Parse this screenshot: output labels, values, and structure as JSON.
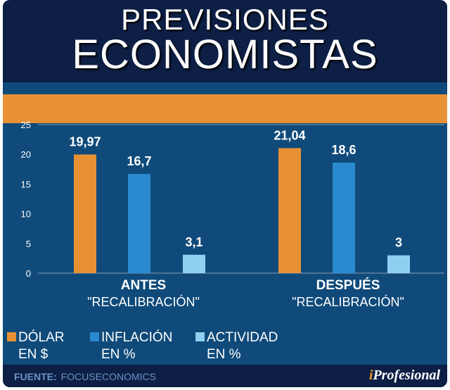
{
  "title": {
    "line1": "PREVISIONES",
    "line2": "ECONOMISTAS"
  },
  "chart_data": {
    "type": "bar",
    "categories": [
      {
        "line1": "ANTES",
        "line2": "\"RECALIBRACIÓN\""
      },
      {
        "line1": "DESPUÉS",
        "line2": "\"RECALIBRACIÓN\""
      }
    ],
    "series": [
      {
        "name": "DÓLAR",
        "unit": "EN $",
        "color": "#e89134",
        "values": [
          19.97,
          21.04
        ],
        "labels": [
          "19,97",
          "21,04"
        ]
      },
      {
        "name": "INFLACIÓN",
        "unit": "EN %",
        "color": "#2a8ad0",
        "values": [
          16.7,
          18.6
        ],
        "labels": [
          "16,7",
          "18,6"
        ]
      },
      {
        "name": "ACTIVIDAD",
        "unit": "EN %",
        "color": "#8fd0f2",
        "values": [
          3.1,
          3
        ],
        "labels": [
          "3,1",
          "3"
        ]
      }
    ],
    "ylim": [
      0,
      25
    ],
    "yticks": [
      0,
      5,
      10,
      15,
      20,
      25
    ],
    "legend": "bottom-left"
  },
  "footer": {
    "label": "FUENTE:",
    "source": "FOCUSECONOMICS",
    "brand_i": "i",
    "brand": "Profesional"
  }
}
